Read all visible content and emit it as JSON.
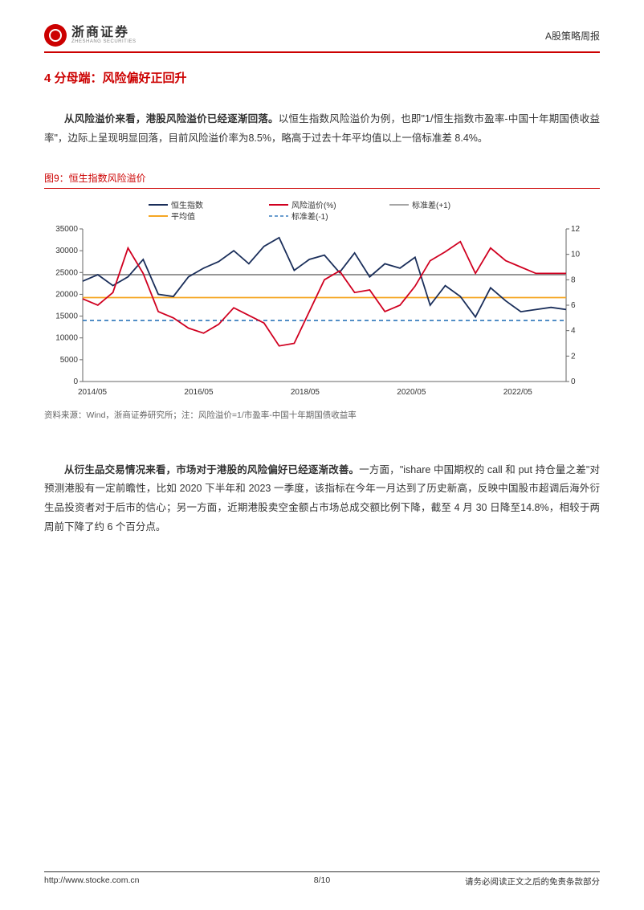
{
  "header": {
    "logo_cn": "浙商证券",
    "logo_en": "ZHESHANG SECURITIES",
    "right_label": "A股策略周报"
  },
  "section": {
    "num": "4",
    "title": "分母端：风险偏好正回升"
  },
  "para1": {
    "bold": "从风险溢价来看，港股风险溢价已经逐渐回落。",
    "rest": "以恒生指数风险溢价为例，也即\"1/恒生指数市盈率-中国十年期国债收益率\"，边际上呈现明显回落，目前风险溢价率为8.5%，略高于过去十年平均值以上一倍标准差 8.4%。"
  },
  "figure9": {
    "caption": "图9：恒生指数风险溢价",
    "source": "资料来源：Wind，浙商证券研究所；注：风险溢价=1/市盈率-中国十年期国债收益率",
    "legend": {
      "hsi": "恒生指数",
      "premium": "风险溢价(%)",
      "std_p1": "标准差(+1)",
      "mean": "平均值",
      "std_m1": "标准差(-1)"
    },
    "colors": {
      "hsi": "#1a2e5a",
      "premium": "#d00020",
      "std_p1": "#888888",
      "mean": "#f5a623",
      "std_m1": "#3a7ebf",
      "axis": "#666666",
      "grid": "#dddddd",
      "bg": "#ffffff"
    },
    "y_left": {
      "min": 0,
      "max": 35000,
      "step": 5000,
      "ticks": [
        0,
        5000,
        10000,
        15000,
        20000,
        25000,
        30000,
        35000
      ]
    },
    "y_right": {
      "min": 0,
      "max": 12,
      "step": 2,
      "ticks": [
        0,
        2,
        4,
        6,
        8,
        10,
        12
      ]
    },
    "x_labels": [
      "2014/05",
      "2016/05",
      "2018/05",
      "2020/05",
      "2022/05"
    ],
    "x_range": [
      0,
      120
    ],
    "lines": {
      "std_p1_value": 8.4,
      "mean_value": 6.6,
      "std_m1_value": 4.8
    },
    "hsi_series": [
      23000,
      24500,
      22000,
      24000,
      28000,
      20000,
      19500,
      24000,
      26000,
      27500,
      30000,
      27000,
      31000,
      33000,
      25500,
      28000,
      29000,
      25000,
      29500,
      24000,
      27000,
      26000,
      28500,
      17500,
      22000,
      19500,
      14800,
      21500,
      18500,
      16000,
      16500,
      17000,
      16500
    ],
    "premium_series": [
      6.5,
      6.0,
      7.0,
      10.5,
      8.5,
      5.5,
      5.0,
      4.2,
      3.8,
      4.5,
      5.8,
      5.2,
      4.6,
      2.8,
      3.0,
      5.5,
      8.0,
      8.7,
      7.0,
      7.2,
      5.5,
      6.0,
      7.5,
      9.5,
      10.2,
      11.0,
      8.5,
      10.5,
      9.5,
      9.0,
      8.5,
      8.5,
      8.5
    ],
    "font_sizes": {
      "legend": 10,
      "axis": 10
    }
  },
  "para2": {
    "bold": "从衍生品交易情况来看，市场对于港股的风险偏好已经逐渐改善。",
    "rest": "一方面，\"ishare 中国期权的 call 和 put 持仓量之差\"对预测港股有一定前瞻性，比如 2020 下半年和 2023 一季度，该指标在今年一月达到了历史新高，反映中国股市超调后海外衍生品投资者对于后市的信心；另一方面，近期港股卖空金额占市场总成交额比例下降，截至 4 月 30 日降至14.8%，相较于两周前下降了约 6 个百分点。"
  },
  "footer": {
    "left": "http://www.stocke.com.cn",
    "center": "8/10",
    "right": "请务必阅读正文之后的免责条款部分"
  }
}
